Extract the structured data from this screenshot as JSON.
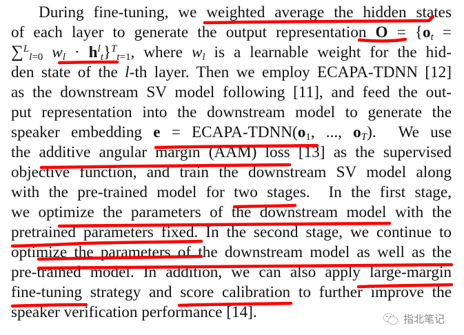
{
  "paragraph": {
    "lines": [
      [
        [
          "During fine-tuning, we weighted average the hidden states",
          ""
        ]
      ],
      [
        [
          "of each layer to generate the output representation ",
          ""
        ],
        [
          "O",
          "bf"
        ],
        [
          " = {",
          ""
        ],
        [
          "o",
          "bf"
        ],
        [
          "t",
          "sub it"
        ],
        [
          " =",
          ""
        ]
      ],
      [
        [
          "∑",
          "big"
        ],
        [
          "L",
          "sup it"
        ],
        [
          "l",
          "sub it"
        ],
        [
          "=0",
          "sub"
        ],
        [
          " w",
          "it"
        ],
        [
          "l",
          "sub it"
        ],
        [
          " · ",
          ""
        ],
        [
          "h",
          "bf"
        ],
        [
          "l",
          "sup it"
        ],
        [
          "t",
          "sub it"
        ],
        [
          "}",
          ""
        ],
        [
          "T",
          "sup it"
        ],
        [
          "t",
          "sub it"
        ],
        [
          "=1",
          "sub"
        ],
        [
          ", where ",
          ""
        ],
        [
          "w",
          "it"
        ],
        [
          "l",
          "sub it"
        ],
        [
          " is a learnable weight for the hid-",
          ""
        ]
      ],
      [
        [
          "den state of the ",
          ""
        ],
        [
          "l",
          "it"
        ],
        [
          "-th layer. Then we employ ECAPA-TDNN [12]",
          ""
        ]
      ],
      [
        [
          "as the downstream SV model following [11], and feed the out-",
          ""
        ]
      ],
      [
        [
          "put representation into the downstream model to generate the",
          ""
        ]
      ],
      [
        [
          "speaker embedding ",
          ""
        ],
        [
          "e",
          "bf"
        ],
        [
          " = ECAPA-TDNN(",
          ""
        ],
        [
          "o",
          "bf"
        ],
        [
          "1",
          "sub"
        ],
        [
          ", ..., ",
          ""
        ],
        [
          "o",
          "bf"
        ],
        [
          "T",
          "sub it"
        ],
        [
          ").  We use",
          ""
        ]
      ],
      [
        [
          "the additive angular margin (AAM) loss [13] as the supervised",
          ""
        ]
      ],
      [
        [
          "objective function, and train the downstream SV model along",
          ""
        ]
      ],
      [
        [
          "with the pre-trained model for two stages.  In the first stage,",
          ""
        ]
      ],
      [
        [
          "we optimize the parameters of the downstream model with the",
          ""
        ]
      ],
      [
        [
          "pretrained parameters fixed. In the second stage, we continue to",
          ""
        ]
      ],
      [
        [
          "optimize the parameters of the downstream model as well as the",
          ""
        ]
      ],
      [
        [
          "pre-trained model. In addition, we can also apply large-margin",
          ""
        ]
      ],
      [
        [
          "fine-tuning strategy and score calibration to further improve the",
          ""
        ]
      ],
      [
        [
          "speaker verification performance [14].",
          ""
        ]
      ]
    ]
  },
  "annotation_color": "#ff0000",
  "watermark": {
    "text": "指北笔记",
    "icon": "wechat-icon"
  }
}
